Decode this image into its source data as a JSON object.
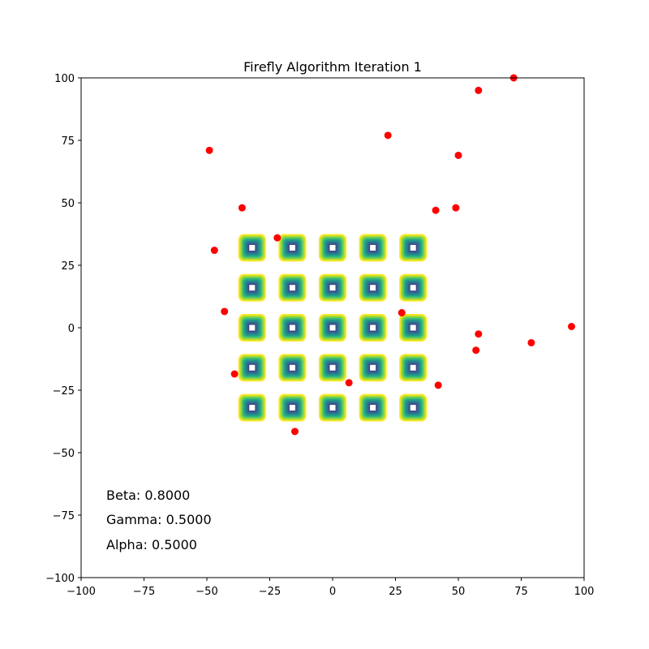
{
  "chart_data": {
    "type": "scatter",
    "title": "Firefly Algorithm Iteration 1",
    "xlabel": "",
    "ylabel": "",
    "xlim": [
      -100,
      100
    ],
    "ylim": [
      -100,
      100
    ],
    "grid": false,
    "x_ticks": [
      -100,
      -75,
      -50,
      -25,
      0,
      25,
      50,
      75,
      100
    ],
    "y_ticks": [
      -100,
      -75,
      -50,
      -25,
      0,
      25,
      50,
      75,
      100
    ],
    "x_tick_labels": [
      "−100",
      "−75",
      "−50",
      "−25",
      "0",
      "25",
      "50",
      "75",
      "100"
    ],
    "y_tick_labels": [
      "−100",
      "−75",
      "−50",
      "−25",
      "0",
      "25",
      "50",
      "75",
      "100"
    ],
    "contour": {
      "kind": "filled-contour-background",
      "centers_x": [
        -32,
        -16,
        0,
        16,
        32
      ],
      "centers_y": [
        -32,
        -16,
        0,
        16,
        32
      ],
      "half_extent": 5.5,
      "levels": 10,
      "colormap": [
        "#fde725",
        "#b5de2b",
        "#6ece58",
        "#35b779",
        "#1f9e89",
        "#26828e",
        "#31688e",
        "#3e4989",
        "#482878",
        "#440154"
      ]
    },
    "fireflies": {
      "color": "#ff0000",
      "points": [
        {
          "x": 72,
          "y": 100
        },
        {
          "x": 58,
          "y": 95
        },
        {
          "x": -49,
          "y": 71
        },
        {
          "x": 22,
          "y": 77
        },
        {
          "x": 50,
          "y": 69
        },
        {
          "x": -36,
          "y": 48
        },
        {
          "x": 41,
          "y": 47
        },
        {
          "x": 49,
          "y": 48
        },
        {
          "x": -22,
          "y": 36
        },
        {
          "x": -47,
          "y": 31
        },
        {
          "x": -43,
          "y": 6.5
        },
        {
          "x": 27.5,
          "y": 6
        },
        {
          "x": 58,
          "y": -2.5
        },
        {
          "x": 95,
          "y": 0.5
        },
        {
          "x": 57,
          "y": -9
        },
        {
          "x": 79,
          "y": -6
        },
        {
          "x": -39,
          "y": -18.5
        },
        {
          "x": 6.5,
          "y": -22
        },
        {
          "x": 42,
          "y": -23
        },
        {
          "x": -15,
          "y": -41.5
        }
      ]
    },
    "annotations": [
      {
        "text": "Beta: 0.8000"
      },
      {
        "text": "Gamma: 0.5000"
      },
      {
        "text": "Alpha: 0.5000"
      }
    ]
  }
}
